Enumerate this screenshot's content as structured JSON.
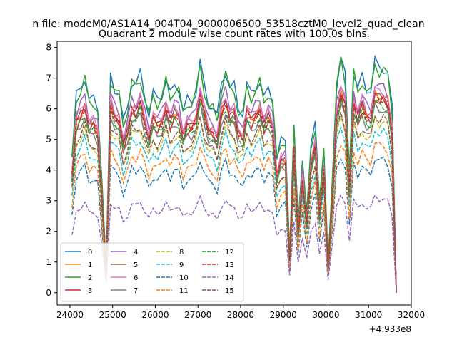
{
  "chart_data": {
    "type": "line",
    "suptitle": "n file: modeM0/AS1A14_004T04_9000006500_53518cztM0_level2_quad_clean",
    "title": "Quadrant 2 module wise count rates with 100.0s bins.",
    "xlabel": "",
    "ylabel": "",
    "x_offset_label": "+4.933e8",
    "xlim": [
      23700,
      32000
    ],
    "ylim": [
      -0.4,
      8.2
    ],
    "xticks": [
      "24000",
      "25000",
      "26000",
      "27000",
      "28000",
      "29000",
      "30000",
      "31000",
      "32000"
    ],
    "yticks": [
      "0",
      "1",
      "2",
      "3",
      "4",
      "5",
      "6",
      "7",
      "8"
    ],
    "legend_position": "lower-left",
    "x_start": 24050,
    "x_step": 100,
    "x_count": 77,
    "dip_indices": [
      7,
      8,
      51,
      53,
      55,
      58,
      60,
      61,
      65,
      76
    ],
    "series": [
      {
        "name": "0",
        "color": "#1f77b4",
        "dash": "solid",
        "level": 6.5,
        "range": [
          0.0,
          7.7
        ]
      },
      {
        "name": "1",
        "color": "#ff7f0e",
        "dash": "solid",
        "level": 5.7,
        "range": [
          0.0,
          6.6
        ]
      },
      {
        "name": "2",
        "color": "#2ca02c",
        "dash": "solid",
        "level": 6.4,
        "range": [
          0.0,
          7.9
        ]
      },
      {
        "name": "3",
        "color": "#d62728",
        "dash": "solid",
        "level": 5.5,
        "range": [
          0.0,
          6.6
        ]
      },
      {
        "name": "4",
        "color": "#9467bd",
        "dash": "solid",
        "level": 5.9,
        "range": [
          0.0,
          6.9
        ]
      },
      {
        "name": "5",
        "color": "#8c564b",
        "dash": "solid",
        "level": 5.6,
        "range": [
          0.0,
          6.5
        ]
      },
      {
        "name": "6",
        "color": "#e377c2",
        "dash": "solid",
        "level": 5.8,
        "range": [
          0.0,
          6.7
        ]
      },
      {
        "name": "7",
        "color": "#7f7f7f",
        "dash": "solid",
        "level": 5.3,
        "range": [
          0.0,
          6.2
        ]
      },
      {
        "name": "8",
        "color": "#bcbd22",
        "dash": "dashed",
        "level": 4.9,
        "range": [
          0.0,
          5.8
        ]
      },
      {
        "name": "9",
        "color": "#17becf",
        "dash": "dashed",
        "level": 4.6,
        "range": [
          0.0,
          5.4
        ]
      },
      {
        "name": "10",
        "color": "#1f77b4",
        "dash": "dashed",
        "level": 3.8,
        "range": [
          0.0,
          4.5
        ]
      },
      {
        "name": "11",
        "color": "#ff7f0e",
        "dash": "dashed",
        "level": 4.2,
        "range": [
          0.0,
          5.0
        ]
      },
      {
        "name": "12",
        "color": "#2ca02c",
        "dash": "dashed",
        "level": 5.4,
        "range": [
          0.0,
          6.3
        ]
      },
      {
        "name": "13",
        "color": "#d62728",
        "dash": "dashed",
        "level": 5.6,
        "range": [
          0.0,
          6.5
        ]
      },
      {
        "name": "14",
        "color": "#9467bd",
        "dash": "dashed",
        "level": 2.7,
        "range": [
          0.0,
          3.2
        ]
      },
      {
        "name": "15",
        "color": "#8c564b",
        "dash": "dashed",
        "level": 5.0,
        "range": [
          0.0,
          5.9
        ]
      }
    ]
  }
}
